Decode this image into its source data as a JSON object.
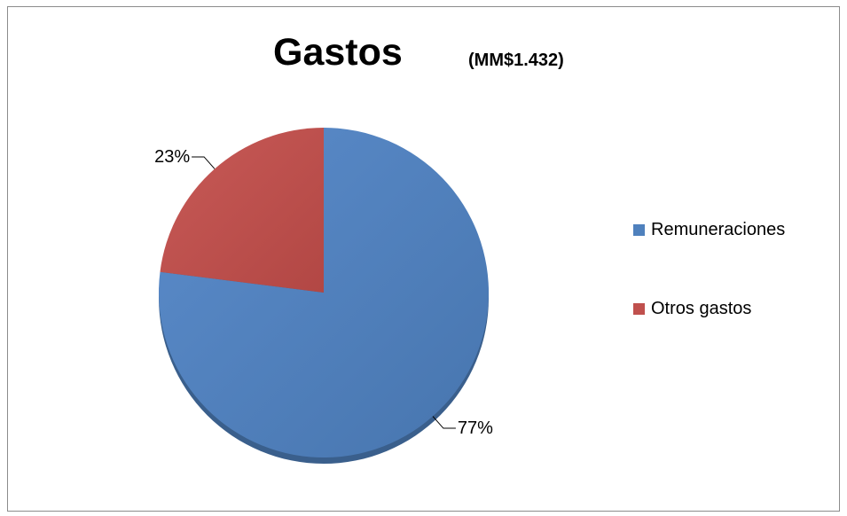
{
  "chart_data": {
    "type": "pie",
    "title": "Gastos",
    "subtitle": "(MM$1.432)",
    "categories": [
      "Remuneraciones",
      "Otros gastos"
    ],
    "values": [
      77,
      23
    ],
    "data_labels": [
      "77%",
      "23%"
    ],
    "colors": [
      "#4f81bd",
      "#c0504d"
    ],
    "legend_position": "right"
  }
}
